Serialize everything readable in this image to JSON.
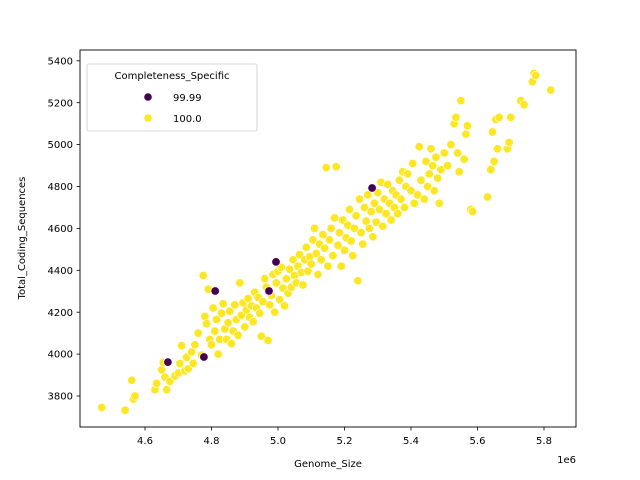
{
  "chart_data": {
    "type": "scatter",
    "title": "",
    "xlabel": "Genome_Size",
    "ylabel": "Total_Coding_Sequences",
    "x_offset_label": "1e6",
    "xlim": [
      4.4,
      5.89
    ],
    "ylim": [
      3660,
      5460
    ],
    "x_ticks": [
      4.6,
      4.8,
      5.0,
      5.2,
      5.4,
      5.6,
      5.8
    ],
    "x_tick_labels": [
      "4.6",
      "4.8",
      "5.0",
      "5.2",
      "5.4",
      "5.6",
      "5.8"
    ],
    "y_ticks": [
      3800,
      4000,
      4200,
      4400,
      4600,
      4800,
      5000,
      5200,
      5400
    ],
    "y_tick_labels": [
      "3800",
      "4000",
      "4200",
      "4400",
      "4600",
      "4800",
      "5000",
      "5200",
      "5400"
    ],
    "grid": false,
    "legend": {
      "title": "Completeness_Specific",
      "position": "upper left",
      "entries": [
        {
          "label": "99.99",
          "color": "#440154"
        },
        {
          "label": "100.0",
          "color": "#fde725"
        }
      ]
    },
    "series": [
      {
        "name": "99.99",
        "color": "#440154",
        "points": [
          [
            4.669,
            3962
          ],
          [
            4.777,
            3986
          ],
          [
            4.811,
            4301
          ],
          [
            4.973,
            4301
          ],
          [
            4.994,
            4440
          ],
          [
            5.283,
            4793
          ]
        ]
      },
      {
        "name": "100.0",
        "color": "#fde725",
        "points": [
          [
            4.47,
            3745
          ],
          [
            4.54,
            3732
          ],
          [
            4.56,
            3875
          ],
          [
            4.565,
            3785
          ],
          [
            4.57,
            3800
          ],
          [
            4.63,
            3830
          ],
          [
            4.635,
            3860
          ],
          [
            4.65,
            3925
          ],
          [
            4.655,
            3960
          ],
          [
            4.66,
            3890
          ],
          [
            4.665,
            3830
          ],
          [
            4.675,
            3870
          ],
          [
            4.69,
            3895
          ],
          [
            4.7,
            3910
          ],
          [
            4.705,
            3955
          ],
          [
            4.71,
            4040
          ],
          [
            4.72,
            3920
          ],
          [
            4.725,
            3985
          ],
          [
            4.73,
            3930
          ],
          [
            4.74,
            4010
          ],
          [
            4.745,
            3955
          ],
          [
            4.75,
            4045
          ],
          [
            4.76,
            4100
          ],
          [
            4.77,
            3995
          ],
          [
            4.775,
            4375
          ],
          [
            4.78,
            4180
          ],
          [
            4.785,
            4145
          ],
          [
            4.79,
            4310
          ],
          [
            4.795,
            4070
          ],
          [
            4.8,
            4045
          ],
          [
            4.805,
            4220
          ],
          [
            4.81,
            4110
          ],
          [
            4.815,
            4165
          ],
          [
            4.82,
            4000
          ],
          [
            4.825,
            4070
          ],
          [
            4.83,
            4195
          ],
          [
            4.835,
            4240
          ],
          [
            4.84,
            4120
          ],
          [
            4.845,
            4070
          ],
          [
            4.85,
            4150
          ],
          [
            4.855,
            4205
          ],
          [
            4.86,
            4050
          ],
          [
            4.865,
            4110
          ],
          [
            4.87,
            4235
          ],
          [
            4.875,
            4165
          ],
          [
            4.88,
            4090
          ],
          [
            4.885,
            4340
          ],
          [
            4.89,
            4185
          ],
          [
            4.895,
            4245
          ],
          [
            4.9,
            4130
          ],
          [
            4.905,
            4210
          ],
          [
            4.91,
            4265
          ],
          [
            4.915,
            4175
          ],
          [
            4.92,
            4230
          ],
          [
            4.925,
            4155
          ],
          [
            4.93,
            4295
          ],
          [
            4.935,
            4220
          ],
          [
            4.94,
            4270
          ],
          [
            4.945,
            4195
          ],
          [
            4.95,
            4085
          ],
          [
            4.955,
            4250
          ],
          [
            4.96,
            4360
          ],
          [
            4.965,
            4320
          ],
          [
            4.97,
            4065
          ],
          [
            4.975,
            4235
          ],
          [
            4.98,
            4280
          ],
          [
            4.985,
            4380
          ],
          [
            4.99,
            4200
          ],
          [
            4.995,
            4340
          ],
          [
            5.0,
            4395
          ],
          [
            5.005,
            4260
          ],
          [
            5.01,
            4415
          ],
          [
            5.015,
            4315
          ],
          [
            5.02,
            4230
          ],
          [
            5.025,
            4360
          ],
          [
            5.03,
            4290
          ],
          [
            5.035,
            4405
          ],
          [
            5.04,
            4320
          ],
          [
            5.045,
            4450
          ],
          [
            5.05,
            4375
          ],
          [
            5.055,
            4340
          ],
          [
            5.06,
            4420
          ],
          [
            5.065,
            4475
          ],
          [
            5.07,
            4390
          ],
          [
            5.075,
            4330
          ],
          [
            5.08,
            4450
          ],
          [
            5.085,
            4510
          ],
          [
            5.09,
            4395
          ],
          [
            5.095,
            4465
          ],
          [
            5.1,
            4430
          ],
          [
            5.105,
            4545
          ],
          [
            5.11,
            4600
          ],
          [
            5.115,
            4480
          ],
          [
            5.12,
            4380
          ],
          [
            5.125,
            4525
          ],
          [
            5.13,
            4450
          ],
          [
            5.135,
            4570
          ],
          [
            5.14,
            4505
          ],
          [
            5.145,
            4890
          ],
          [
            5.15,
            4420
          ],
          [
            5.155,
            4545
          ],
          [
            5.16,
            4600
          ],
          [
            5.165,
            4470
          ],
          [
            5.17,
            4650
          ],
          [
            5.175,
            4895
          ],
          [
            5.18,
            4520
          ],
          [
            5.185,
            4580
          ],
          [
            5.19,
            4420
          ],
          [
            5.195,
            4640
          ],
          [
            5.2,
            4495
          ],
          [
            5.205,
            4555
          ],
          [
            5.21,
            4615
          ],
          [
            5.215,
            4690
          ],
          [
            5.22,
            4540
          ],
          [
            5.225,
            4470
          ],
          [
            5.23,
            4600
          ],
          [
            5.235,
            4660
          ],
          [
            5.24,
            4350
          ],
          [
            5.245,
            4740
          ],
          [
            5.25,
            4580
          ],
          [
            5.255,
            4525
          ],
          [
            5.26,
            4700
          ],
          [
            5.265,
            4635
          ],
          [
            5.27,
            4760
          ],
          [
            5.275,
            4600
          ],
          [
            5.28,
            4680
          ],
          [
            5.285,
            4560
          ],
          [
            5.29,
            4720
          ],
          [
            5.295,
            4630
          ],
          [
            5.3,
            4770
          ],
          [
            5.305,
            4690
          ],
          [
            5.31,
            4820
          ],
          [
            5.315,
            4610
          ],
          [
            5.32,
            4740
          ],
          [
            5.325,
            4670
          ],
          [
            5.33,
            4810
          ],
          [
            5.335,
            4720
          ],
          [
            5.34,
            4640
          ],
          [
            5.345,
            4780
          ],
          [
            5.35,
            4700
          ],
          [
            5.355,
            4760
          ],
          [
            5.36,
            4670
          ],
          [
            5.365,
            4830
          ],
          [
            5.37,
            4740
          ],
          [
            5.375,
            4870
          ],
          [
            5.38,
            4700
          ],
          [
            5.385,
            4800
          ],
          [
            5.39,
            4860
          ],
          [
            5.4,
            4780
          ],
          [
            5.405,
            4910
          ],
          [
            5.41,
            4720
          ],
          [
            5.42,
            4760
          ],
          [
            5.425,
            4990
          ],
          [
            5.43,
            4830
          ],
          [
            5.44,
            4740
          ],
          [
            5.445,
            4920
          ],
          [
            5.45,
            4800
          ],
          [
            5.455,
            4860
          ],
          [
            5.46,
            4980
          ],
          [
            5.465,
            4900
          ],
          [
            5.47,
            4780
          ],
          [
            5.475,
            4940
          ],
          [
            5.48,
            4840
          ],
          [
            5.485,
            4720
          ],
          [
            5.49,
            4880
          ],
          [
            5.5,
            4960
          ],
          [
            5.51,
            4900
          ],
          [
            5.52,
            5000
          ],
          [
            5.53,
            5100
          ],
          [
            5.535,
            5130
          ],
          [
            5.54,
            4960
          ],
          [
            5.545,
            4870
          ],
          [
            5.55,
            5210
          ],
          [
            5.56,
            4930
          ],
          [
            5.565,
            5050
          ],
          [
            5.57,
            5090
          ],
          [
            5.58,
            4690
          ],
          [
            5.585,
            4680
          ],
          [
            5.63,
            4750
          ],
          [
            5.64,
            4880
          ],
          [
            5.645,
            5060
          ],
          [
            5.65,
            4920
          ],
          [
            5.655,
            5120
          ],
          [
            5.66,
            4980
          ],
          [
            5.665,
            5130
          ],
          [
            5.69,
            4980
          ],
          [
            5.695,
            5010
          ],
          [
            5.7,
            5130
          ],
          [
            5.73,
            5210
          ],
          [
            5.74,
            5190
          ],
          [
            5.765,
            5300
          ],
          [
            5.77,
            5340
          ],
          [
            5.775,
            5330
          ],
          [
            5.82,
            5260
          ]
        ]
      }
    ]
  }
}
